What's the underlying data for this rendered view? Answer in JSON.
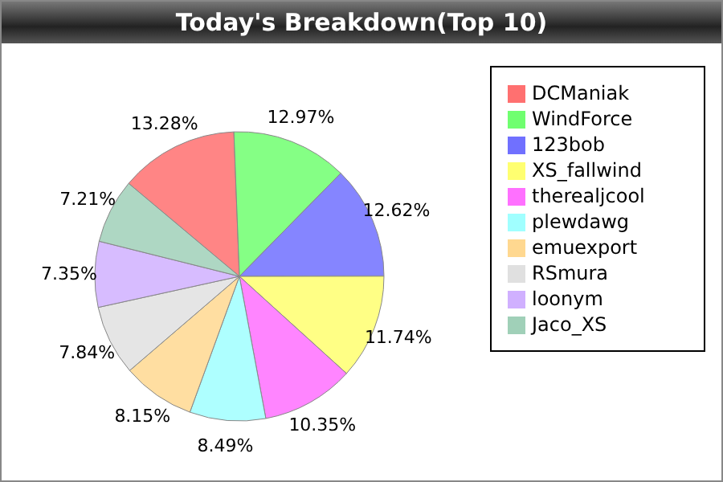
{
  "chart_data": {
    "type": "pie",
    "title": "Today's Breakdown(Top 10)",
    "categories": [
      "DCManiak",
      "WindForce",
      "123bob",
      "XS_fallwind",
      "therealjcool",
      "plewdawg",
      "emuexport",
      "RSmura",
      "loonym",
      "Jaco_XS"
    ],
    "values": [
      13.28,
      12.97,
      12.62,
      11.74,
      10.35,
      8.49,
      8.15,
      7.84,
      7.35,
      7.21
    ],
    "value_labels": [
      "13.28%",
      "12.97%",
      "12.62%",
      "11.74%",
      "10.35%",
      "8.49%",
      "8.15%",
      "7.84%",
      "7.35%",
      "7.21%"
    ],
    "colors": [
      "#ff7070",
      "#70ff70",
      "#7070ff",
      "#ffff70",
      "#ff70ff",
      "#a0ffff",
      "#ffd890",
      "#e0e0e0",
      "#d0b0ff",
      "#a0d0b8"
    ],
    "legend": "right"
  }
}
